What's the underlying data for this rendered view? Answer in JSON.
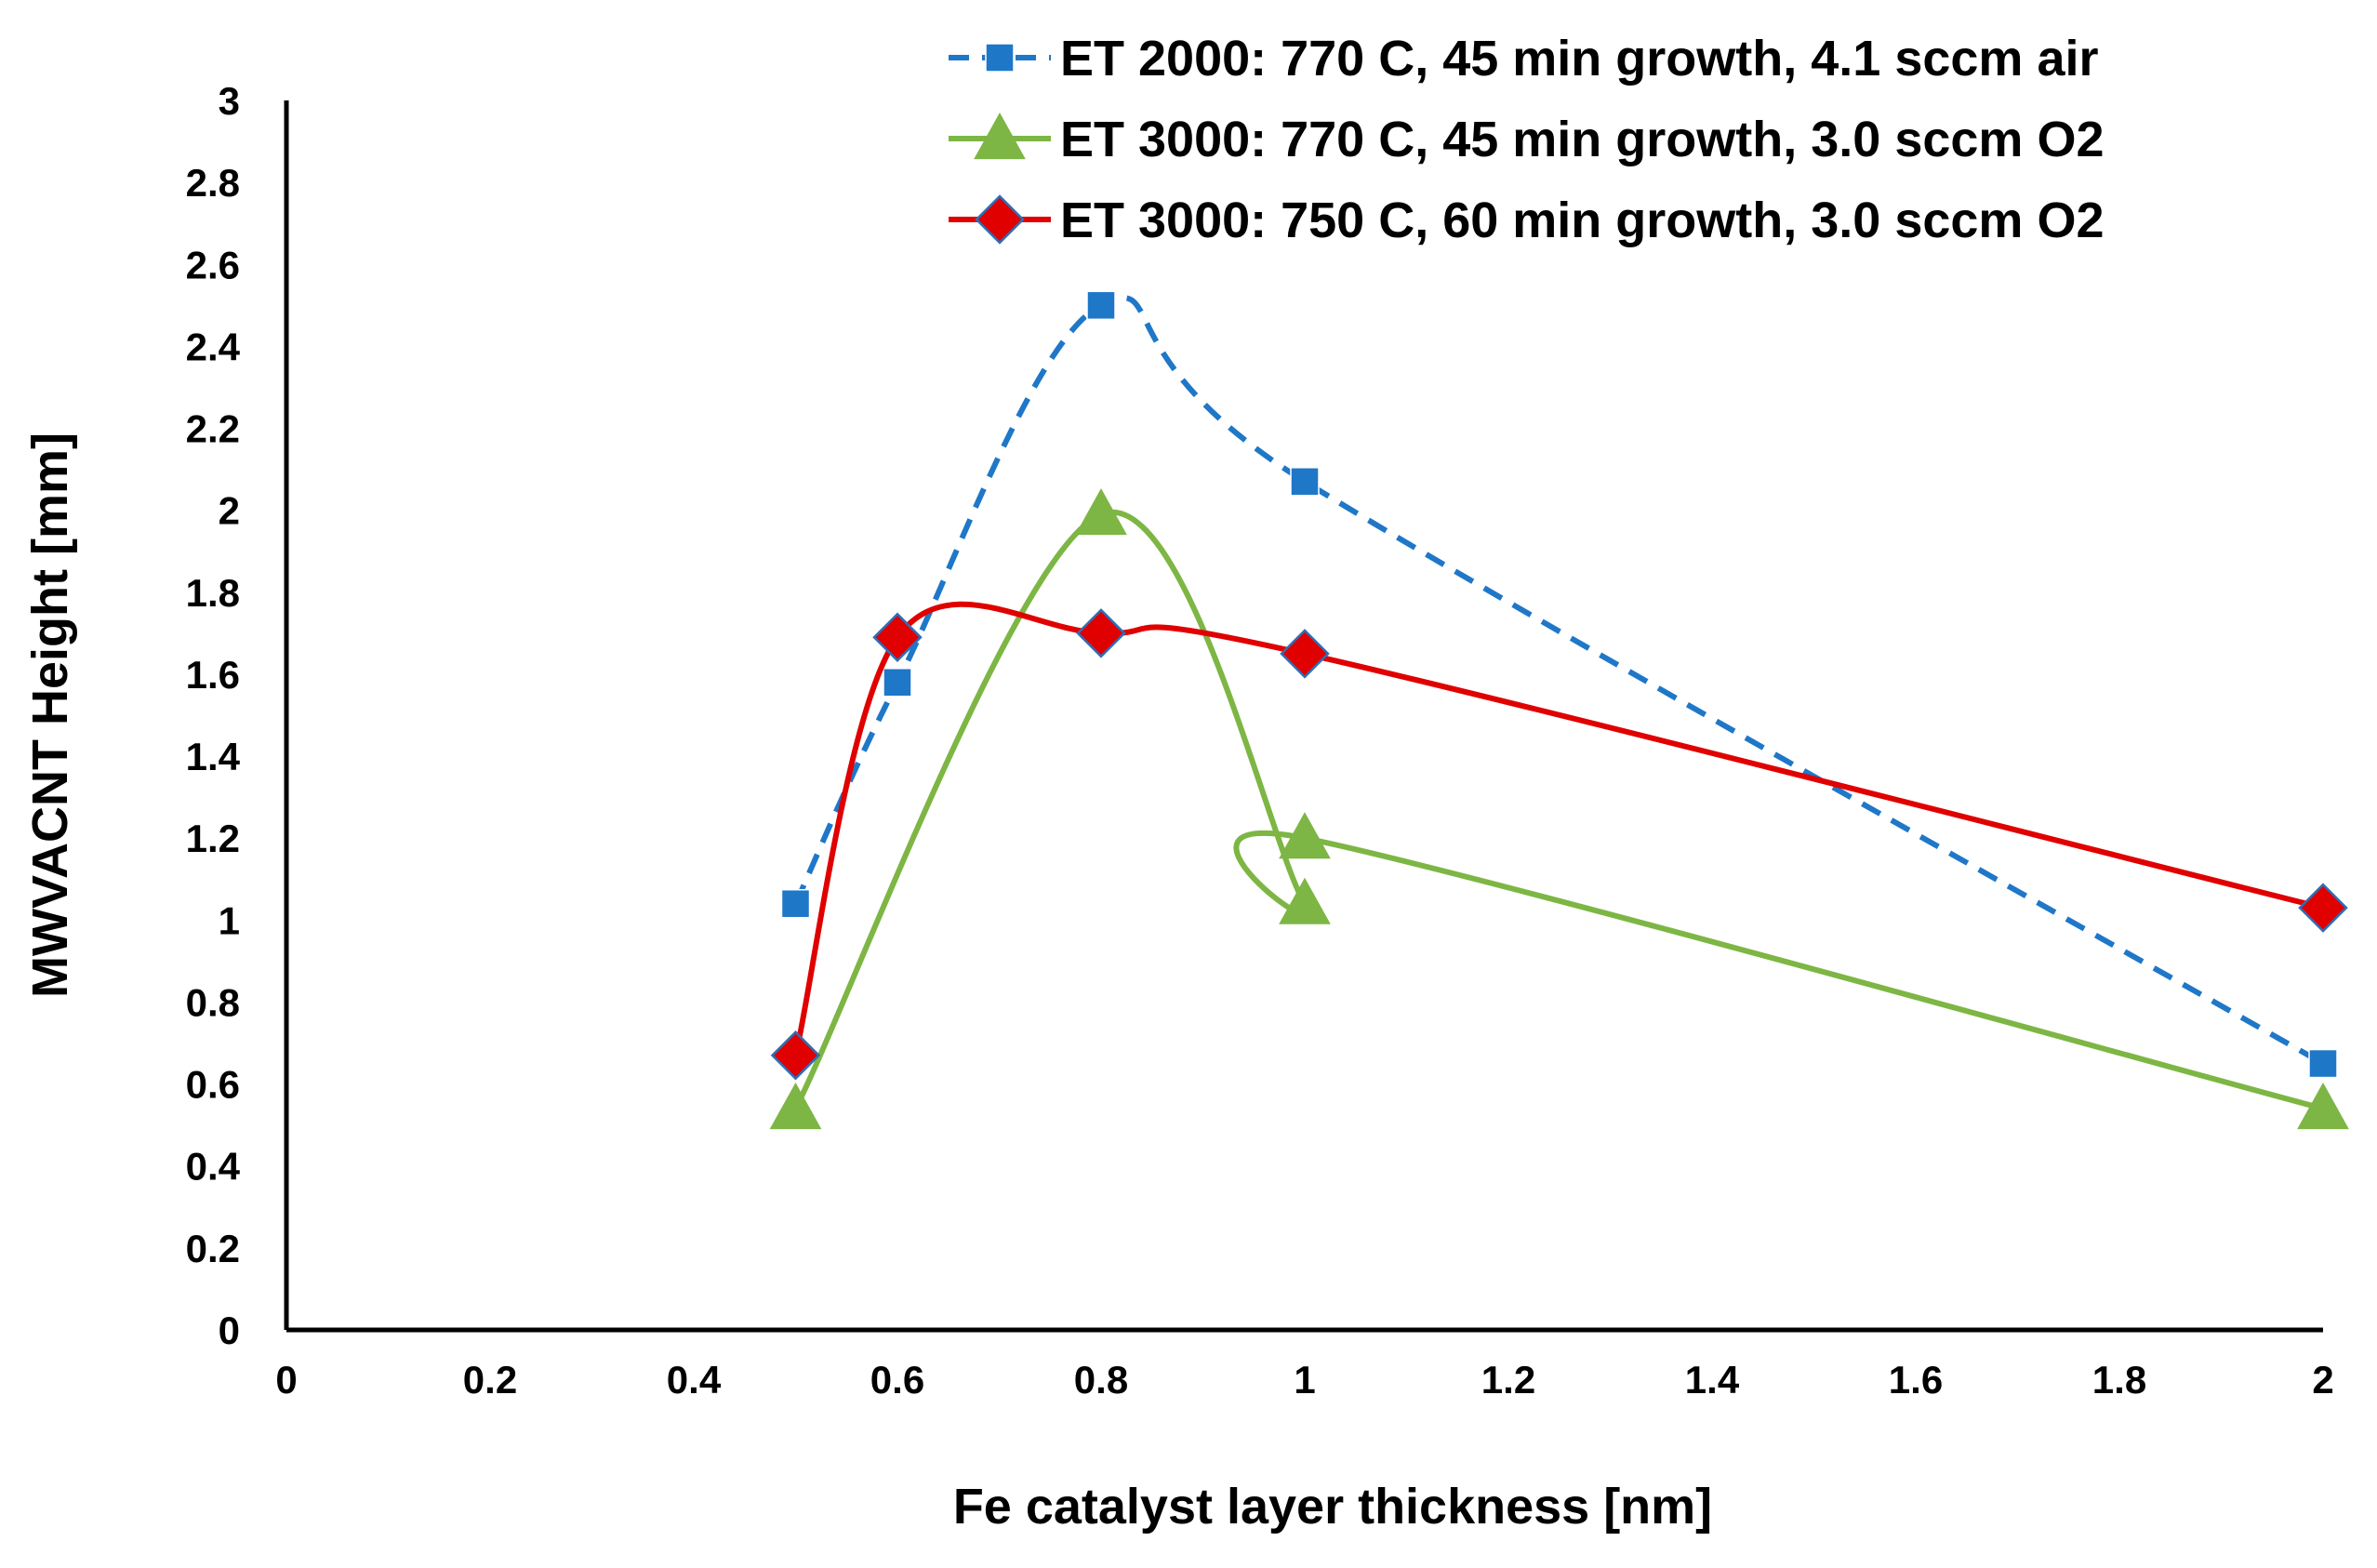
{
  "chart_data": {
    "type": "scatter",
    "title": "",
    "xlabel": "Fe catalyst layer thickness [nm]",
    "ylabel": "MWVACNT Height [mm]",
    "xlim": [
      0,
      2
    ],
    "ylim": [
      0,
      3
    ],
    "x_ticks": [
      0,
      0.2,
      0.4,
      0.6,
      0.8,
      1,
      1.2,
      1.4,
      1.6,
      1.8,
      2
    ],
    "x_tick_labels": [
      "0",
      "0.2",
      "0.4",
      "0.6",
      "0.8",
      "1",
      "1.2",
      "1.4",
      "1.6",
      "1.8",
      "2"
    ],
    "y_ticks": [
      0,
      0.2,
      0.4,
      0.6,
      0.8,
      1,
      1.2,
      1.4,
      1.6,
      1.8,
      2,
      2.2,
      2.4,
      2.6,
      2.8,
      3
    ],
    "y_tick_labels": [
      "0",
      "0.2",
      "0.4",
      "0.6",
      "0.8",
      "1",
      "1.2",
      "1.4",
      "1.6",
      "1.8",
      "2",
      "2.2",
      "2.4",
      "2.6",
      "2.8",
      "3"
    ],
    "grid": false,
    "legend_position": "top-right",
    "series": [
      {
        "name": "ET 2000: 770 C, 45 min growth, 4.1 sccm air",
        "color": "#1F77C8",
        "marker": "square",
        "line_style": "dashed",
        "smooth": true,
        "x": [
          0.5,
          0.6,
          0.8,
          1,
          2
        ],
        "y": [
          1.04,
          1.58,
          2.5,
          2.07,
          0.65
        ]
      },
      {
        "name": "ET 3000: 770 C, 45 min growth, 3.0 sccm O2",
        "color": "#7DB644",
        "marker": "triangle",
        "line_style": "solid",
        "smooth": true,
        "x": [
          0.5,
          0.8,
          1,
          1,
          2
        ],
        "y": [
          0.54,
          1.99,
          1.04,
          1.2,
          0.54
        ]
      },
      {
        "name": "ET 3000: 750 C, 60 min growth, 3.0 sccm O2",
        "color": "#E00000",
        "marker": "diamond",
        "line_style": "solid",
        "smooth": true,
        "x": [
          0.5,
          0.6,
          0.8,
          1,
          2
        ],
        "y": [
          0.67,
          1.69,
          1.7,
          1.65,
          1.03
        ]
      }
    ]
  }
}
